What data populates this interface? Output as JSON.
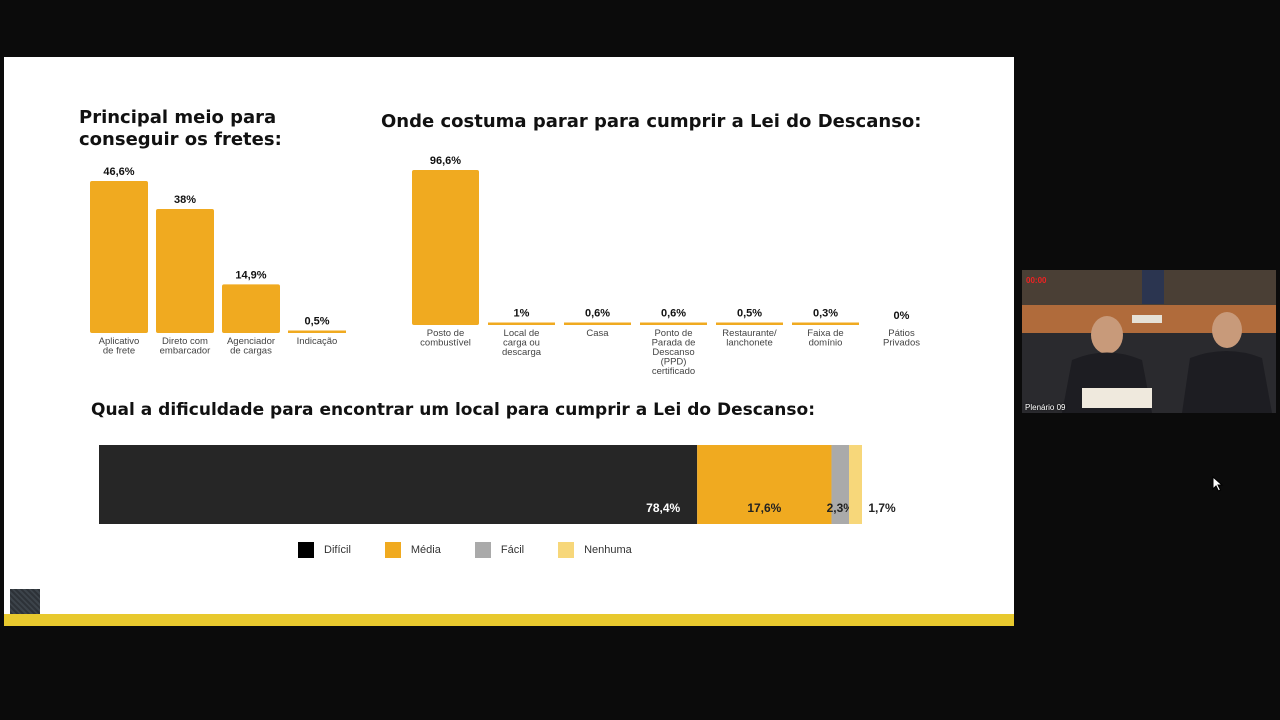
{
  "colors": {
    "bar": "#F0AA20",
    "dificil": "#262626",
    "media": "#F0AA20",
    "facil": "#AAAAAA",
    "nenhuma": "#F7D77A",
    "strip": "#E8C92E"
  },
  "pip": {
    "label": "Plenário 09",
    "timer": "00:00"
  },
  "chart_data": [
    {
      "type": "bar",
      "title": "Principal meio para conseguir os fretes:",
      "categories": [
        "Aplicativo de frete",
        "Direto com embarcador",
        "Agenciador de cargas",
        "Indicação"
      ],
      "values": [
        46.6,
        38,
        14.9,
        0.5
      ],
      "value_labels": [
        "46,6%",
        "38%",
        "14,9%",
        "0,5%"
      ],
      "ylim": [
        0,
        46.6
      ]
    },
    {
      "type": "bar",
      "title": "Onde costuma parar para cumprir a Lei do Descanso:",
      "categories": [
        "Posto de combustível",
        "Local de carga ou descarga",
        "Casa",
        "Ponto de Parada de Descanso (PPD) certificado",
        "Restaurante/ lanchonete",
        "Faixa de domínio",
        "Pátios Privados"
      ],
      "values": [
        96.6,
        1,
        0.6,
        0.6,
        0.5,
        0.3,
        0
      ],
      "value_labels": [
        "96,6%",
        "1%",
        "0,6%",
        "0,6%",
        "0,5%",
        "0,3%",
        "0%"
      ],
      "ylim": [
        0,
        96.6
      ]
    },
    {
      "type": "bar",
      "orientation": "stacked-horizontal",
      "title": "Qual a dificuldade para encontrar um local para cumprir a Lei do Descanso:",
      "series": [
        {
          "name": "Difícil",
          "value": 78.4,
          "label": "78,4%"
        },
        {
          "name": "Média",
          "value": 17.6,
          "label": "17,6%"
        },
        {
          "name": "Fácil",
          "value": 2.3,
          "label": "2,3%"
        },
        {
          "name": "Nenhuma",
          "value": 1.7,
          "label": "1,7%"
        }
      ],
      "legend": "bottom"
    }
  ]
}
